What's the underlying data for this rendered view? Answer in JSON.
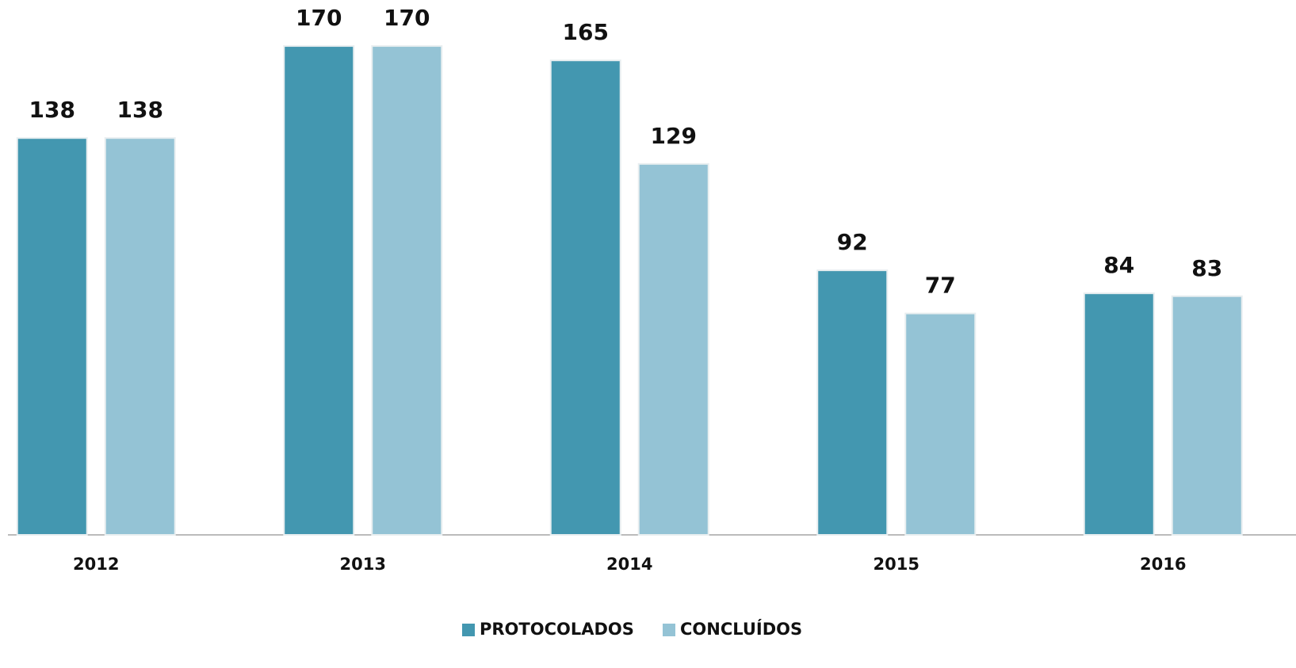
{
  "chart_data": {
    "type": "bar",
    "categories": [
      "2012",
      "2013",
      "2014",
      "2015",
      "2016"
    ],
    "series": [
      {
        "name": "PROTOCOLADOS",
        "color": "#4397b0",
        "values": [
          138,
          170,
          165,
          92,
          84
        ]
      },
      {
        "name": "CONCLUÍDOS",
        "color": "#94c3d5",
        "values": [
          138,
          170,
          129,
          77,
          83
        ]
      }
    ],
    "ylim": [
      0,
      186
    ],
    "legend": "bottom"
  }
}
